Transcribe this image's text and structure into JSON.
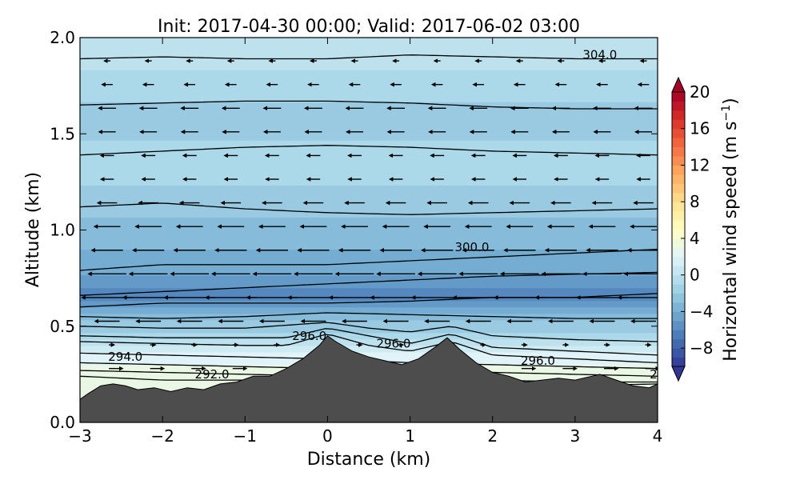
{
  "chart_data": {
    "type": "heatmap",
    "title": "Init: 2017-04-30 00:00; Valid: 2017-06-02 03:00",
    "xlabel": "Distance (km)",
    "ylabel": "Altitude (km)",
    "xlim": [
      -3,
      4
    ],
    "ylim": [
      0,
      2
    ],
    "x_ticks": [
      -3,
      -2,
      -1,
      0,
      1,
      2,
      3,
      4
    ],
    "x_tick_labels": [
      "−3",
      "−2",
      "−1",
      "0",
      "1",
      "2",
      "3",
      "4"
    ],
    "y_ticks": [
      0.0,
      0.5,
      1.0,
      1.5,
      2.0
    ],
    "y_tick_labels": [
      "0.0",
      "0.5",
      "1.0",
      "1.5",
      "2.0"
    ],
    "colorbar": {
      "label": "Horizontal wind speed (m s",
      "label_superscript": "−1",
      "label_close": ")",
      "range": [
        -10,
        20
      ],
      "colormap": "RdYlBu_r",
      "extend": "both",
      "ticks": [
        -8,
        -4,
        0,
        4,
        8,
        12,
        16,
        20
      ],
      "tick_labels": [
        "−8",
        "−4",
        "0",
        "4",
        "8",
        "12",
        "16",
        "20"
      ]
    },
    "wind_field": {
      "description_levels_km": [
        {
          "altitude": 0.25,
          "speed": 3
        },
        {
          "altitude": 0.35,
          "speed": 2
        },
        {
          "altitude": 0.5,
          "speed": -2
        },
        {
          "altitude": 0.65,
          "speed": -6
        },
        {
          "altitude": 0.8,
          "speed": -4
        },
        {
          "altitude": 1.0,
          "speed": -3
        },
        {
          "altitude": 1.3,
          "speed": -1
        },
        {
          "altitude": 1.6,
          "speed": -2
        },
        {
          "altitude": 1.9,
          "speed": 0
        }
      ]
    },
    "terrain": {
      "x": [
        -3,
        -2.9,
        -2.75,
        -2.6,
        -2.45,
        -2.3,
        -2.1,
        -1.9,
        -1.7,
        -1.5,
        -1.3,
        -1.1,
        -0.9,
        -0.7,
        -0.5,
        -0.3,
        -0.1,
        0.0,
        0.1,
        0.3,
        0.5,
        0.7,
        0.9,
        1.1,
        1.3,
        1.45,
        1.6,
        1.8,
        2.0,
        2.2,
        2.4,
        2.6,
        2.8,
        3.0,
        3.2,
        3.3,
        3.5,
        3.7,
        3.9,
        4.0
      ],
      "y": [
        0.12,
        0.15,
        0.19,
        0.2,
        0.19,
        0.17,
        0.18,
        0.16,
        0.18,
        0.17,
        0.2,
        0.21,
        0.24,
        0.24,
        0.28,
        0.33,
        0.4,
        0.45,
        0.42,
        0.37,
        0.34,
        0.32,
        0.3,
        0.33,
        0.39,
        0.44,
        0.38,
        0.31,
        0.26,
        0.24,
        0.21,
        0.22,
        0.23,
        0.22,
        0.24,
        0.25,
        0.22,
        0.19,
        0.18,
        0.2
      ]
    },
    "isentropes": [
      {
        "level": 291.0,
        "x": [
          -3,
          -2,
          -1,
          0,
          1,
          2,
          3,
          4
        ],
        "y": [
          0.24,
          0.22,
          0.22,
          0.2,
          0.2,
          0.19,
          0.19,
          0.2
        ]
      },
      {
        "level": 292.0,
        "x": [
          -3,
          -2,
          -1,
          0,
          1,
          2,
          3,
          4
        ],
        "y": [
          0.27,
          0.26,
          0.25,
          0.24,
          0.23,
          0.22,
          0.21,
          0.21
        ]
      },
      {
        "level": 293.0,
        "x": [
          -3,
          -2,
          -1,
          0,
          1,
          2,
          3,
          4
        ],
        "y": [
          0.31,
          0.3,
          0.29,
          0.28,
          0.27,
          0.26,
          0.25,
          0.24
        ]
      },
      {
        "level": 294.0,
        "x": [
          -3,
          -2,
          -1,
          0,
          1,
          2,
          3,
          4
        ],
        "y": [
          0.36,
          0.35,
          0.34,
          0.33,
          0.31,
          0.3,
          0.29,
          0.28
        ]
      },
      {
        "level": 295.0,
        "x": [
          -3,
          -2,
          -1,
          -0.5,
          0,
          0.5,
          1,
          1.5,
          2,
          3,
          4
        ],
        "y": [
          0.42,
          0.41,
          0.4,
          0.4,
          0.46,
          0.4,
          0.37,
          0.42,
          0.35,
          0.33,
          0.31
        ]
      },
      {
        "level": 296.0,
        "x": [
          -3,
          -2,
          -1,
          -0.5,
          0,
          0.5,
          1,
          1.5,
          2,
          3,
          4
        ],
        "y": [
          0.45,
          0.44,
          0.44,
          0.44,
          0.49,
          0.45,
          0.41,
          0.46,
          0.39,
          0.37,
          0.35
        ]
      },
      {
        "level": 297.0,
        "x": [
          -3,
          -2,
          -1,
          0,
          0.5,
          1,
          1.5,
          2,
          3,
          4
        ],
        "y": [
          0.5,
          0.49,
          0.49,
          0.52,
          0.49,
          0.47,
          0.5,
          0.45,
          0.43,
          0.42
        ]
      },
      {
        "level": 298.0,
        "x": [
          -3,
          -2,
          -1,
          0,
          1,
          2,
          3,
          4
        ],
        "y": [
          0.55,
          0.54,
          0.55,
          0.57,
          0.56,
          0.55,
          0.54,
          0.54
        ]
      },
      {
        "level": 299.0,
        "x": [
          -3,
          -2,
          -1,
          0,
          1,
          2,
          3,
          4
        ],
        "y": [
          0.6,
          0.62,
          0.62,
          0.62,
          0.63,
          0.65,
          0.65,
          0.67
        ]
      },
      {
        "level": 300.0,
        "x": [
          -3,
          -2,
          -1,
          0,
          1,
          2,
          3,
          4
        ],
        "y": [
          0.66,
          0.68,
          0.7,
          0.72,
          0.74,
          0.76,
          0.77,
          0.78
        ]
      },
      {
        "level": 300.5,
        "x": [
          -3,
          -2,
          -1,
          0,
          1,
          2,
          3,
          4
        ],
        "y": [
          0.79,
          0.82,
          0.82,
          0.82,
          0.84,
          0.86,
          0.88,
          0.9
        ]
      },
      {
        "level": 301.0,
        "x": [
          -3,
          -2,
          -1,
          0,
          1,
          2,
          3,
          4
        ],
        "y": [
          1.12,
          1.14,
          1.11,
          1.09,
          1.08,
          1.09,
          1.1,
          1.11
        ]
      },
      {
        "level": 302.0,
        "x": [
          -3,
          -2,
          -1,
          0,
          1,
          2,
          3,
          4
        ],
        "y": [
          1.39,
          1.41,
          1.43,
          1.44,
          1.43,
          1.41,
          1.4,
          1.39
        ]
      },
      {
        "level": 303.0,
        "x": [
          -3,
          -2,
          -1,
          0,
          1,
          2,
          3,
          4
        ],
        "y": [
          1.65,
          1.66,
          1.67,
          1.67,
          1.66,
          1.64,
          1.63,
          1.63
        ]
      },
      {
        "level": 304.0,
        "x": [
          -3,
          -2,
          -1,
          0,
          1,
          2,
          3,
          4
        ],
        "y": [
          1.89,
          1.9,
          1.89,
          1.89,
          1.91,
          1.9,
          1.89,
          1.89
        ]
      }
    ],
    "contour_labels": [
      {
        "text": "304.0",
        "x": 3.3,
        "y": 1.91
      },
      {
        "text": "300.0",
        "x": 1.75,
        "y": 0.91
      },
      {
        "text": "296.0",
        "x": -0.22,
        "y": 0.45
      },
      {
        "text": "296.0",
        "x": 0.8,
        "y": 0.41
      },
      {
        "text": "296.0",
        "x": 2.55,
        "y": 0.32
      },
      {
        "text": "294.0",
        "x": -2.45,
        "y": 0.34
      },
      {
        "text": "292.0",
        "x": -1.4,
        "y": 0.25
      },
      {
        "text": "2",
        "x": 3.95,
        "y": 0.25
      }
    ]
  }
}
